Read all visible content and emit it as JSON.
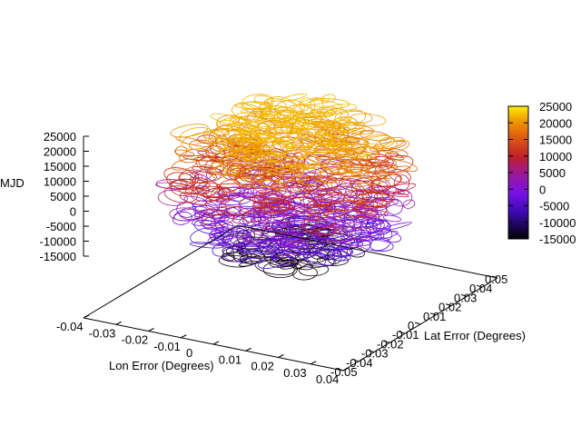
{
  "chart_data": {
    "type": "scatter",
    "xlabel": "Lon Error (Degrees)",
    "ylabel": "Lat Error (Degrees)",
    "zlabel": "MJD",
    "x_ticks": [
      "-0.04",
      "-0.03",
      "-0.02",
      "-0.01",
      "0",
      "0.01",
      "0.02",
      "0.03",
      "0.04"
    ],
    "y_ticks": [
      "-0.05",
      "-0.04",
      "-0.03",
      "-0.02",
      "-0.01",
      "0",
      "0.01",
      "0.02",
      "0.03",
      "0.04",
      "0.05"
    ],
    "z_ticks": [
      "-15000",
      "-10000",
      "-5000",
      "0",
      "5000",
      "10000",
      "15000",
      "20000",
      "25000"
    ],
    "xlim": [
      -0.04,
      0.04
    ],
    "ylim": [
      -0.05,
      0.05
    ],
    "zlim": [
      -15000,
      25000
    ],
    "colorbar_ticks": [
      "-15000",
      "-10000",
      "-5000",
      "0",
      "5000",
      "10000",
      "15000",
      "20000",
      "25000"
    ],
    "colorbar_range": [
      -15000,
      25000
    ],
    "palette": [
      "#000000",
      "#3a0ab0",
      "#7a10e8",
      "#c0205a",
      "#e06010",
      "#f0a000",
      "#ffee00"
    ],
    "series_style": "error ellipses, colored by MJD",
    "layers": [
      {
        "z": -17000,
        "color": "#100010",
        "rx": 0.018,
        "ry": 0.022
      },
      {
        "z": -12000,
        "color": "#5010d0",
        "rx": 0.026,
        "ry": 0.03
      },
      {
        "z": -8000,
        "color": "#6a10e0",
        "rx": 0.03,
        "ry": 0.034
      },
      {
        "z": -4000,
        "color": "#8a18d8",
        "rx": 0.032,
        "ry": 0.036
      },
      {
        "z": 0,
        "color": "#a0209a",
        "rx": 0.033,
        "ry": 0.037
      },
      {
        "z": 4000,
        "color": "#c02040",
        "rx": 0.033,
        "ry": 0.037
      },
      {
        "z": 8000,
        "color": "#c83010",
        "rx": 0.032,
        "ry": 0.036
      },
      {
        "z": 12000,
        "color": "#e06808",
        "rx": 0.031,
        "ry": 0.035
      },
      {
        "z": 16000,
        "color": "#e89000",
        "rx": 0.029,
        "ry": 0.033
      },
      {
        "z": 20000,
        "color": "#f0a800",
        "rx": 0.026,
        "ry": 0.03
      },
      {
        "z": 24000,
        "color": "#f4b800",
        "rx": 0.018,
        "ry": 0.024
      }
    ]
  }
}
